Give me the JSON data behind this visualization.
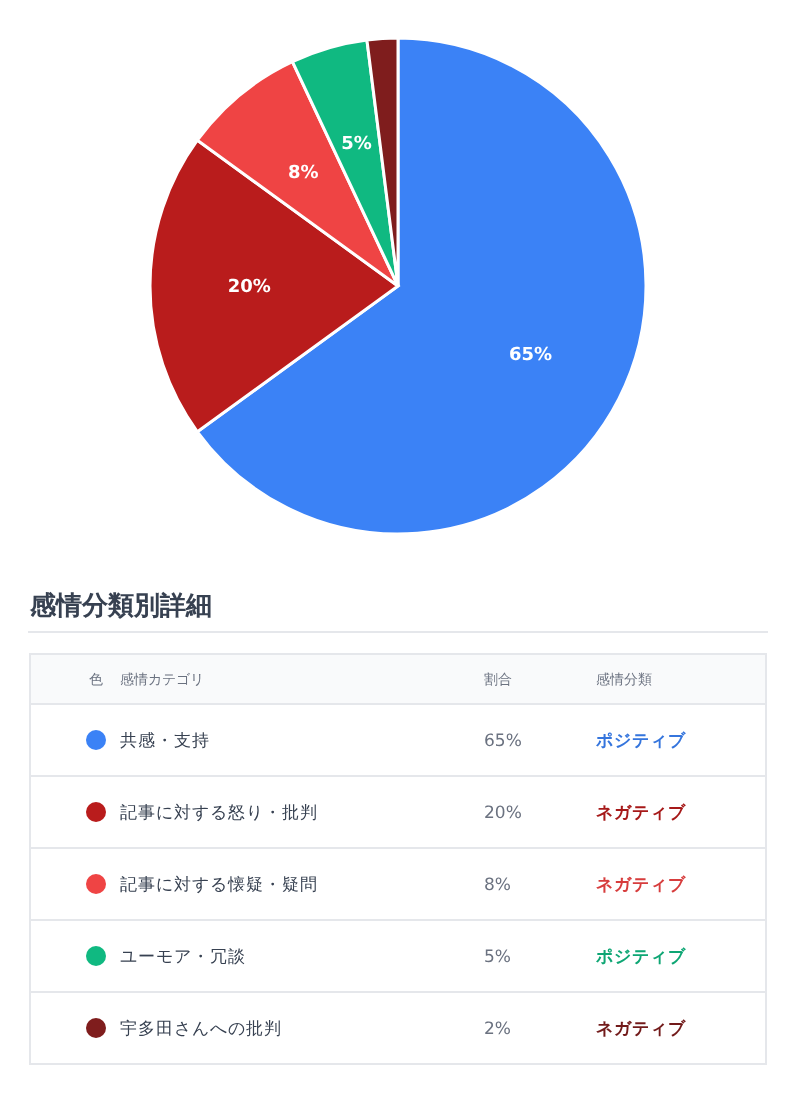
{
  "chart_data": {
    "type": "pie",
    "categories": [
      "共感・支持",
      "記事に対する怒り・批判",
      "記事に対する懐疑・疑問",
      "ユーモア・冗談",
      "宇多田さんへの批判"
    ],
    "values": [
      65,
      20,
      8,
      5,
      2
    ],
    "colors": [
      "#3b82f6",
      "#b91c1c",
      "#ef4444",
      "#10b981",
      "#7f1d1d"
    ],
    "value_labels": [
      "65%",
      "20%",
      "8%",
      "5%",
      null
    ],
    "legend": "bottom",
    "legend_title": "感情分類別詳細",
    "annotations": [
      "色",
      "感情カテゴリ",
      "割合",
      "感情分類",
      "65%",
      "ポジティブ",
      "20%",
      "ネガティブ",
      "8%",
      "ネガティブ",
      "5%",
      "ポジティブ",
      "2%",
      "ネガティブ"
    ]
  }
}
